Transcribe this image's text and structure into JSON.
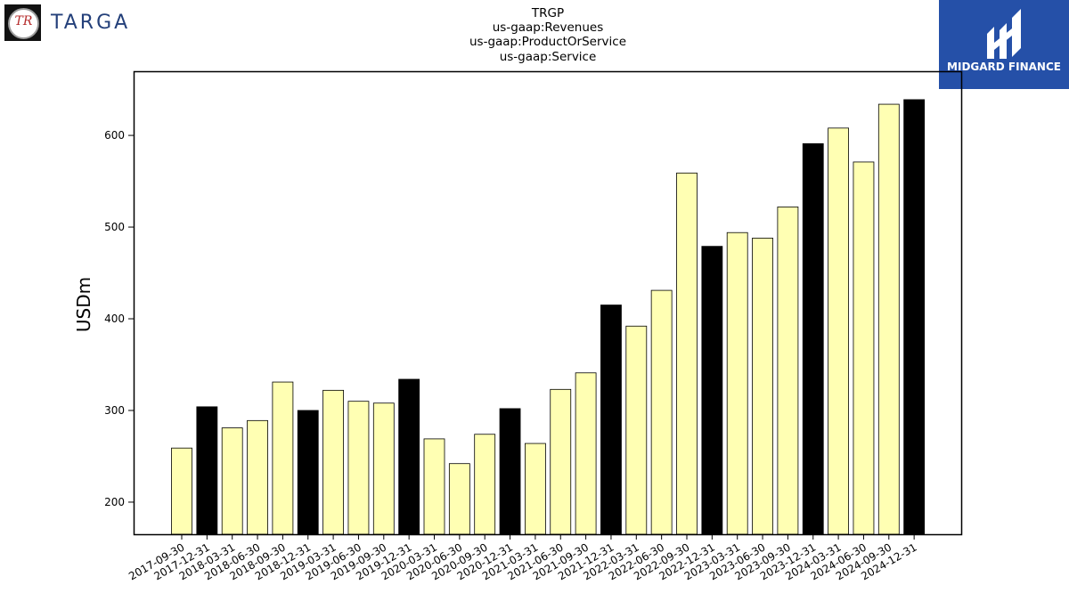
{
  "logos": {
    "left": {
      "mark_text": "TR",
      "word": "TARGA"
    },
    "right": {
      "word": "MIDGARD FINANCE"
    }
  },
  "colors": {
    "highlight_bar": "#000000",
    "regular_bar": "#ffffb3",
    "bar_edge": "#000000",
    "brand_blue": "#2550a8",
    "targa_blue": "#24407a"
  },
  "chart_data": {
    "type": "bar",
    "title_lines": [
      "TRGP",
      "us-gaap:Revenues",
      "us-gaap:ProductOrService",
      "us-gaap:Service"
    ],
    "xlabel": "",
    "ylabel": "USDm",
    "ylim": [
      165,
      670
    ],
    "yticks": [
      200,
      300,
      400,
      500,
      600
    ],
    "grid": false,
    "categories": [
      "2017-09-30",
      "2017-12-31",
      "2018-03-31",
      "2018-06-30",
      "2018-09-30",
      "2018-12-31",
      "2019-03-31",
      "2019-06-30",
      "2019-09-30",
      "2019-12-31",
      "2020-03-31",
      "2020-06-30",
      "2020-09-30",
      "2020-12-31",
      "2021-03-31",
      "2021-06-30",
      "2021-09-30",
      "2021-12-31",
      "2022-03-31",
      "2022-06-30",
      "2022-09-30",
      "2022-12-31",
      "2023-03-31",
      "2023-06-30",
      "2023-09-30",
      "2023-12-31",
      "2024-03-31",
      "2024-06-30",
      "2024-09-30",
      "2024-12-31"
    ],
    "values": [
      259,
      304,
      281,
      289,
      331,
      300,
      322,
      310,
      308,
      334,
      269,
      242,
      274,
      302,
      264,
      323,
      341,
      415,
      392,
      431,
      559,
      479,
      494,
      488,
      522,
      591,
      608,
      571,
      634,
      639
    ],
    "highlight": [
      false,
      true,
      false,
      false,
      false,
      true,
      false,
      false,
      false,
      true,
      false,
      false,
      false,
      true,
      false,
      false,
      false,
      true,
      false,
      false,
      false,
      true,
      false,
      false,
      false,
      true,
      false,
      false,
      false,
      true
    ]
  }
}
